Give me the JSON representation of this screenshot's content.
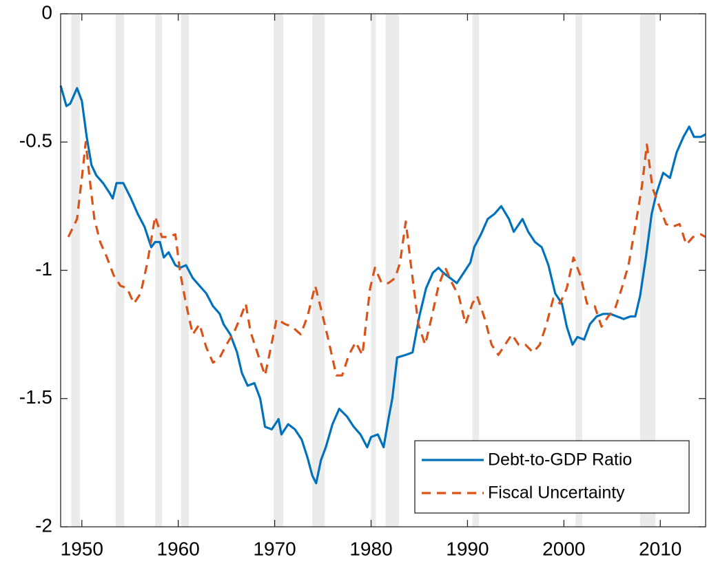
{
  "chart_data": {
    "type": "line",
    "xlim": [
      1947.8,
      2014.7
    ],
    "ylim": [
      -2,
      0
    ],
    "xticks": [
      1950,
      1960,
      1970,
      1980,
      1990,
      2000,
      2010
    ],
    "yticks": [
      -2,
      -1.5,
      -1,
      -0.5,
      0
    ],
    "shaded_regions": [
      [
        1948.9,
        1949.8
      ],
      [
        1953.5,
        1954.4
      ],
      [
        1957.6,
        1958.3
      ],
      [
        1960.3,
        1961.1
      ],
      [
        1969.9,
        1970.9
      ],
      [
        1973.9,
        1975.2
      ],
      [
        1980.0,
        1980.5
      ],
      [
        1981.5,
        1982.9
      ],
      [
        1990.5,
        1991.2
      ],
      [
        2001.2,
        2001.9
      ],
      [
        2007.9,
        2009.5
      ]
    ],
    "shade_color": "#ebebeb",
    "legend": "southeast",
    "series": [
      {
        "name": "Debt-to-GDP Ratio",
        "color": "#0072bd",
        "style": "solid",
        "x": [
          1947.8,
          1948.4,
          1948.8,
          1949.5,
          1950.0,
          1950.5,
          1951.0,
          1951.5,
          1952.2,
          1952.9,
          1953.2,
          1953.6,
          1954.3,
          1955.1,
          1955.8,
          1956.5,
          1957.2,
          1957.6,
          1958.1,
          1958.5,
          1959.0,
          1959.7,
          1960.2,
          1960.8,
          1961.5,
          1962.2,
          1962.9,
          1963.6,
          1964.3,
          1964.7,
          1965.4,
          1966.1,
          1966.6,
          1967.2,
          1967.9,
          1968.5,
          1969.0,
          1969.7,
          1970.4,
          1970.7,
          1971.4,
          1972.1,
          1972.8,
          1973.4,
          1973.9,
          1974.3,
          1974.8,
          1975.3,
          1976.0,
          1976.7,
          1977.5,
          1978.2,
          1978.9,
          1979.6,
          1980.0,
          1980.7,
          1981.3,
          1981.8,
          1982.2,
          1982.7,
          1983.6,
          1984.3,
          1985.0,
          1985.7,
          1986.4,
          1987.0,
          1987.5,
          1988.2,
          1988.9,
          1989.6,
          1990.3,
          1990.7,
          1991.4,
          1992.1,
          1992.8,
          1993.5,
          1994.3,
          1994.8,
          1995.7,
          1996.3,
          1997.0,
          1997.7,
          1998.4,
          1999.1,
          1999.8,
          2000.3,
          2000.9,
          2001.4,
          2002.1,
          2002.7,
          2003.4,
          2004.1,
          2004.8,
          2005.5,
          2006.2,
          2006.9,
          2007.4,
          2007.9,
          2008.5,
          2009.1,
          2009.6,
          2010.3,
          2011.0,
          2011.7,
          2012.4,
          2013.0,
          2013.5,
          2014.2,
          2014.7
        ],
        "values": [
          -0.28,
          -0.36,
          -0.35,
          -0.29,
          -0.34,
          -0.48,
          -0.59,
          -0.63,
          -0.66,
          -0.7,
          -0.72,
          -0.66,
          -0.66,
          -0.72,
          -0.78,
          -0.83,
          -0.91,
          -0.89,
          -0.89,
          -0.95,
          -0.93,
          -0.98,
          -0.99,
          -0.98,
          -1.03,
          -1.06,
          -1.09,
          -1.14,
          -1.17,
          -1.21,
          -1.25,
          -1.32,
          -1.4,
          -1.45,
          -1.44,
          -1.5,
          -1.61,
          -1.62,
          -1.58,
          -1.64,
          -1.6,
          -1.62,
          -1.66,
          -1.73,
          -1.8,
          -1.83,
          -1.74,
          -1.69,
          -1.6,
          -1.54,
          -1.57,
          -1.61,
          -1.64,
          -1.69,
          -1.65,
          -1.64,
          -1.69,
          -1.58,
          -1.5,
          -1.34,
          -1.33,
          -1.32,
          -1.18,
          -1.07,
          -1.01,
          -0.99,
          -1.01,
          -1.03,
          -1.05,
          -1.01,
          -0.97,
          -0.91,
          -0.86,
          -0.8,
          -0.78,
          -0.75,
          -0.8,
          -0.85,
          -0.8,
          -0.85,
          -0.89,
          -0.91,
          -0.98,
          -1.09,
          -1.13,
          -1.22,
          -1.29,
          -1.26,
          -1.27,
          -1.21,
          -1.18,
          -1.17,
          -1.17,
          -1.18,
          -1.19,
          -1.18,
          -1.18,
          -1.1,
          -0.95,
          -0.78,
          -0.7,
          -0.62,
          -0.64,
          -0.54,
          -0.48,
          -0.44,
          -0.48,
          -0.48,
          -0.47
        ]
      },
      {
        "name": "Fiscal Uncertainty",
        "color": "#d95319",
        "style": "dashed",
        "x": [
          1948.6,
          1949.5,
          1950.0,
          1950.4,
          1950.8,
          1951.3,
          1951.9,
          1952.6,
          1953.3,
          1954.0,
          1954.7,
          1955.4,
          1956.1,
          1956.8,
          1957.6,
          1958.3,
          1959.0,
          1959.7,
          1960.2,
          1960.8,
          1961.5,
          1962.2,
          1962.9,
          1963.6,
          1964.3,
          1965.0,
          1965.8,
          1966.5,
          1967.0,
          1967.5,
          1968.2,
          1969.0,
          1969.5,
          1970.2,
          1971.1,
          1971.8,
          1972.7,
          1973.4,
          1974.2,
          1974.8,
          1975.5,
          1976.4,
          1977.0,
          1977.7,
          1978.4,
          1979.1,
          1979.9,
          1980.4,
          1981.1,
          1981.8,
          1982.5,
          1983.0,
          1983.6,
          1984.1,
          1984.9,
          1985.6,
          1986.3,
          1987.0,
          1987.7,
          1988.4,
          1989.1,
          1989.8,
          1990.5,
          1991.0,
          1991.8,
          1992.5,
          1993.2,
          1993.9,
          1994.6,
          1995.3,
          1996.0,
          1996.8,
          1997.5,
          1998.2,
          1998.9,
          1999.6,
          2000.3,
          2001.0,
          2001.7,
          2002.4,
          2003.2,
          2003.9,
          2004.6,
          2005.3,
          2006.0,
          2006.7,
          2007.4,
          2008.1,
          2008.6,
          2009.2,
          2009.9,
          2010.6,
          2011.3,
          2012.0,
          2012.7,
          2013.4,
          2014.2,
          2014.7
        ],
        "values": [
          -0.87,
          -0.8,
          -0.64,
          -0.5,
          -0.64,
          -0.8,
          -0.89,
          -0.95,
          -1.02,
          -1.06,
          -1.07,
          -1.13,
          -1.09,
          -0.97,
          -0.79,
          -0.87,
          -0.87,
          -0.86,
          -1.01,
          -1.13,
          -1.25,
          -1.21,
          -1.3,
          -1.36,
          -1.34,
          -1.29,
          -1.24,
          -1.18,
          -1.13,
          -1.24,
          -1.32,
          -1.41,
          -1.32,
          -1.19,
          -1.21,
          -1.22,
          -1.25,
          -1.18,
          -1.06,
          -1.15,
          -1.26,
          -1.41,
          -1.41,
          -1.33,
          -1.28,
          -1.33,
          -1.07,
          -0.99,
          -1.05,
          -1.05,
          -1.03,
          -0.97,
          -0.81,
          -0.97,
          -1.21,
          -1.29,
          -1.18,
          -1.06,
          -0.99,
          -1.05,
          -1.1,
          -1.21,
          -1.13,
          -1.1,
          -1.19,
          -1.29,
          -1.33,
          -1.29,
          -1.25,
          -1.29,
          -1.29,
          -1.32,
          -1.29,
          -1.21,
          -1.11,
          -1.13,
          -1.07,
          -0.95,
          -1.02,
          -1.13,
          -1.14,
          -1.22,
          -1.18,
          -1.15,
          -1.07,
          -0.98,
          -0.83,
          -0.67,
          -0.51,
          -0.68,
          -0.75,
          -0.82,
          -0.83,
          -0.82,
          -0.9,
          -0.87,
          -0.86,
          -0.87
        ]
      }
    ]
  }
}
